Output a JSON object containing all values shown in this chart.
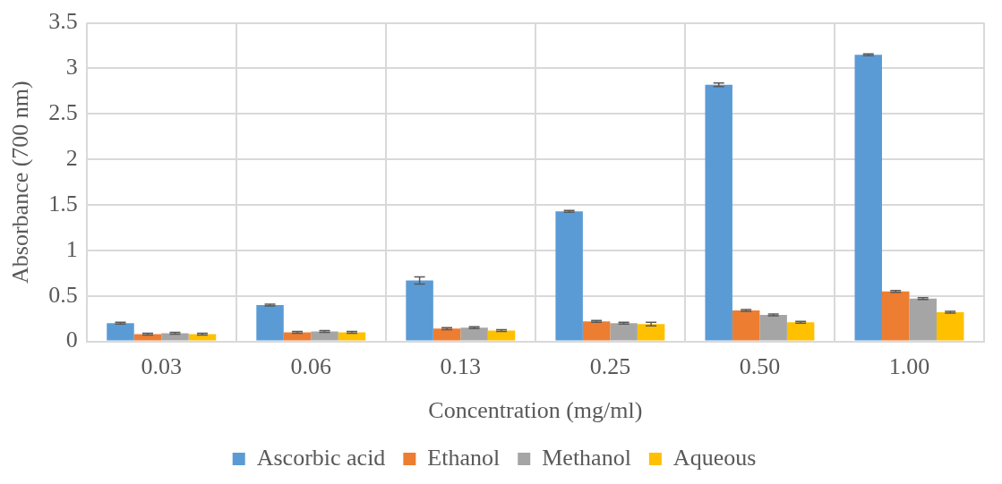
{
  "chart_data": {
    "type": "bar",
    "xlabel": "Concentration (mg/ml)",
    "ylabel": "Absorbance (700 nm)",
    "categories": [
      "0.03",
      "0.06",
      "0.13",
      "0.25",
      "0.50",
      "1.00"
    ],
    "series": [
      {
        "name": "Ascorbic acid",
        "color": "#5b9bd5",
        "values": [
          0.2,
          0.4,
          0.67,
          1.43,
          2.82,
          3.15
        ],
        "errors": [
          0.01,
          0.01,
          0.04,
          0.01,
          0.02,
          0.01
        ]
      },
      {
        "name": "Ethanol",
        "color": "#ed7d31",
        "values": [
          0.08,
          0.1,
          0.14,
          0.22,
          0.34,
          0.55
        ],
        "errors": [
          0.01,
          0.01,
          0.01,
          0.01,
          0.01,
          0.01
        ]
      },
      {
        "name": "Methanol",
        "color": "#a5a5a5",
        "values": [
          0.09,
          0.11,
          0.15,
          0.2,
          0.29,
          0.47
        ],
        "errors": [
          0.01,
          0.01,
          0.01,
          0.01,
          0.01,
          0.01
        ]
      },
      {
        "name": "Aqueous",
        "color": "#ffc000",
        "values": [
          0.08,
          0.1,
          0.12,
          0.19,
          0.21,
          0.32
        ],
        "errors": [
          0.01,
          0.01,
          0.01,
          0.02,
          0.01,
          0.01
        ]
      }
    ],
    "ylim": [
      0,
      3.5
    ],
    "yticks": [
      0,
      0.5,
      1,
      1.5,
      2,
      2.5,
      3,
      3.5
    ],
    "grid": true,
    "legend": "bottom"
  }
}
